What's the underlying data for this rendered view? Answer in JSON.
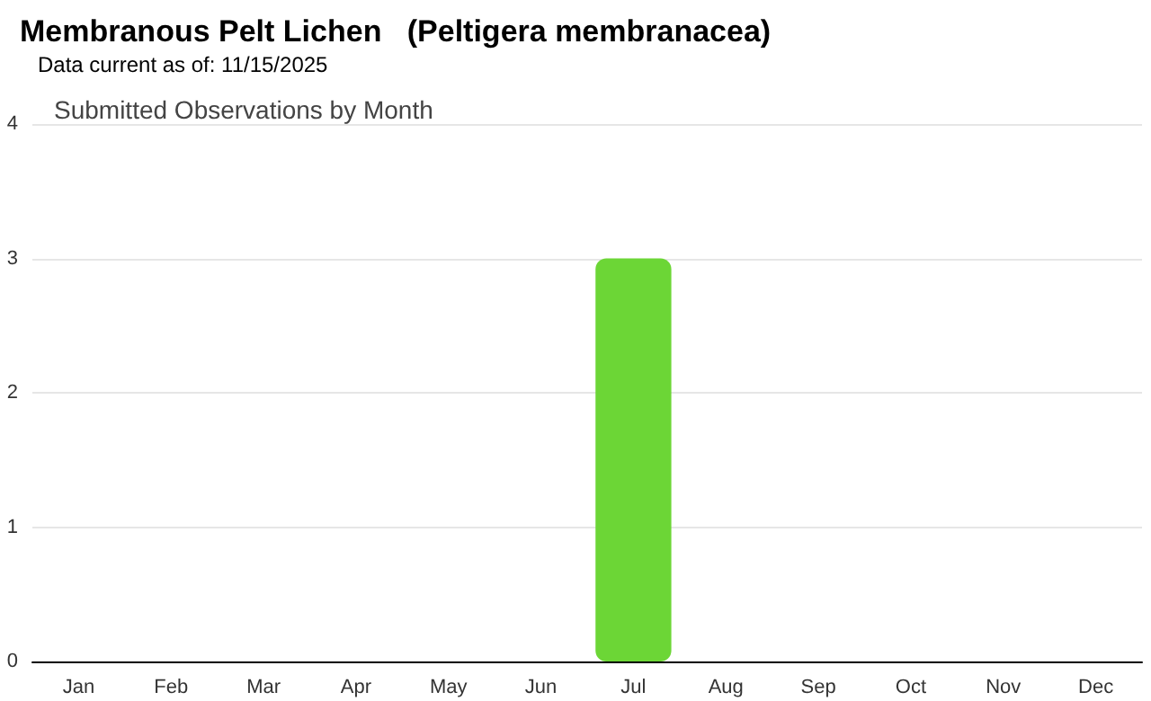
{
  "chart_data": {
    "type": "bar",
    "title": "Membranous Pelt Lichen   (Peltigera membranacea)",
    "subtitle": "Data current as of: 11/15/2025",
    "annotations": [
      "Submitted Observations by Month"
    ],
    "categories": [
      "Jan",
      "Feb",
      "Mar",
      "Apr",
      "May",
      "Jun",
      "Jul",
      "Aug",
      "Sep",
      "Oct",
      "Nov",
      "Dec"
    ],
    "values": [
      0,
      0,
      0,
      0,
      0,
      0,
      3,
      0,
      0,
      0,
      0,
      0
    ],
    "color": "#6cd636",
    "ylim": [
      0,
      4
    ],
    "yticks": [
      0,
      1,
      2,
      3,
      4
    ],
    "grid": "y"
  }
}
